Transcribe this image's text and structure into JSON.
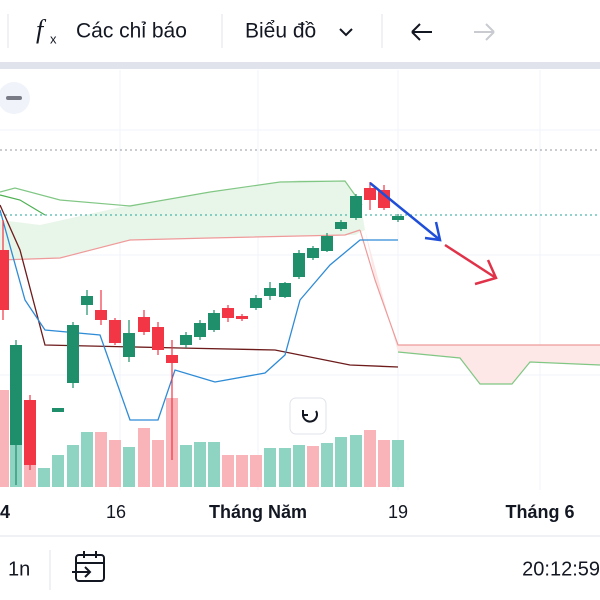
{
  "toolbar": {
    "indicators": "Các chỉ báo",
    "chart_type": "Biểu đồ"
  },
  "x_axis": {
    "labels": [
      "4",
      "16",
      "Tháng Năm",
      "19",
      "Tháng 6"
    ]
  },
  "footer": {
    "interval": "1n",
    "time": "20:12:59"
  }
}
